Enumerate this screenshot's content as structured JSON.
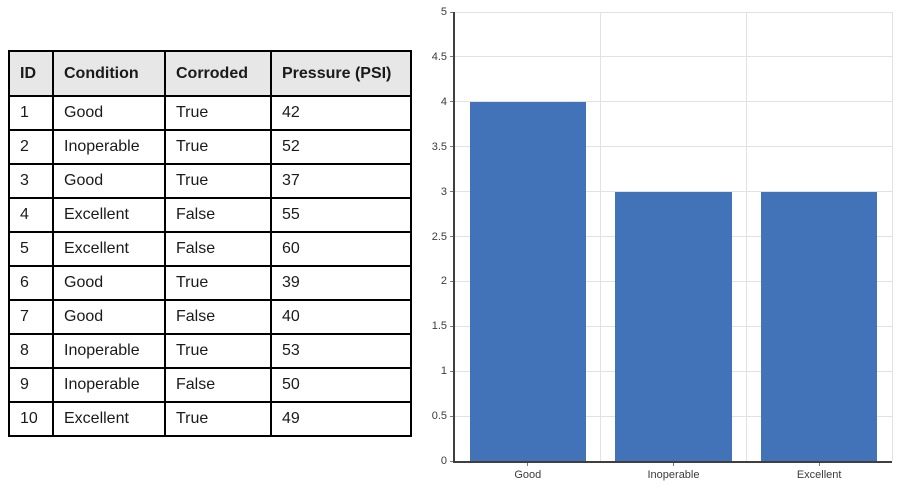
{
  "table": {
    "columns": [
      "ID",
      "Condition",
      "Corroded",
      "Pressure (PSI)"
    ],
    "rows": [
      [
        "1",
        "Good",
        "True",
        "42"
      ],
      [
        "2",
        "Inoperable",
        "True",
        "52"
      ],
      [
        "3",
        "Good",
        "True",
        "37"
      ],
      [
        "4",
        "Excellent",
        "False",
        "55"
      ],
      [
        "5",
        "Excellent",
        "False",
        "60"
      ],
      [
        "6",
        "Good",
        "True",
        "39"
      ],
      [
        "7",
        "Good",
        "False",
        "40"
      ],
      [
        "8",
        "Inoperable",
        "True",
        "53"
      ],
      [
        "9",
        "Inoperable",
        "False",
        "50"
      ],
      [
        "10",
        "Excellent",
        "True",
        "49"
      ]
    ]
  },
  "chart_data": {
    "type": "bar",
    "categories": [
      "Good",
      "Inoperable",
      "Excellent"
    ],
    "values": [
      4,
      3,
      3
    ],
    "title": "",
    "xlabel": "",
    "ylabel": "",
    "ylim": [
      0,
      5
    ],
    "ytick_step": 0.5,
    "yticks": [
      "0",
      "0.5",
      "1",
      "1.5",
      "2",
      "2.5",
      "3",
      "3.5",
      "4",
      "4.5",
      "5"
    ],
    "bar_color": "#4273b8",
    "grid": true,
    "legend": "none"
  }
}
